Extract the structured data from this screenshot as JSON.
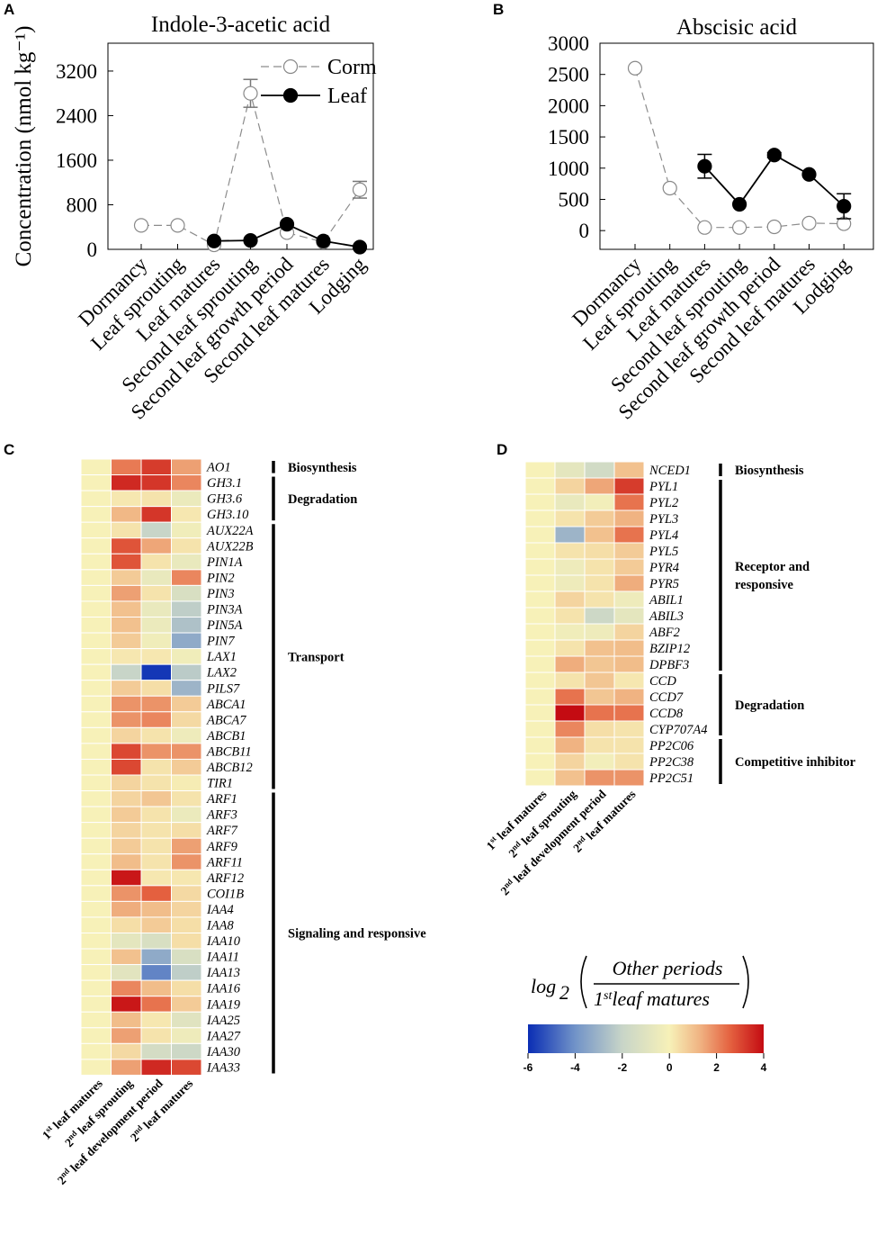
{
  "panels": {
    "A": {
      "letter": "A"
    },
    "B": {
      "letter": "B"
    },
    "C": {
      "letter": "C"
    },
    "D": {
      "letter": "D"
    }
  },
  "chart_data": [
    {
      "panel": "A",
      "type": "line",
      "title": "Indole-3-acetic acid",
      "ylabel": "Concentration (nmol kg⁻¹)",
      "ylim": [
        0,
        3700
      ],
      "yticks": [
        0,
        800,
        1600,
        2400,
        3200
      ],
      "categories": [
        "Dormancy",
        "Leaf sprouting",
        "Leaf matures",
        "Second leaf sprouting",
        "Second leaf growth period",
        "Second leaf matures",
        "Lodging"
      ],
      "legend_position": "top-right",
      "series": [
        {
          "name": "Corm",
          "style": "dashed-open",
          "values": [
            430,
            430,
            80,
            2800,
            300,
            130,
            1070
          ],
          "errors": [
            0,
            0,
            0,
            250,
            0,
            0,
            150
          ]
        },
        {
          "name": "Leaf",
          "style": "solid-filled",
          "values": [
            null,
            null,
            150,
            160,
            450,
            150,
            40
          ],
          "errors": [
            0,
            0,
            0,
            0,
            0,
            0,
            0
          ]
        }
      ]
    },
    {
      "panel": "B",
      "type": "line",
      "title": "Abscisic acid",
      "ylabel": "",
      "ylim": [
        -300,
        3000
      ],
      "yticks": [
        0,
        500,
        1000,
        1500,
        2000,
        2500,
        3000
      ],
      "categories": [
        "Dormancy",
        "Leaf sprouting",
        "Leaf matures",
        "Second leaf sprouting",
        "Second leaf growth period",
        "Second leaf matures",
        "Lodging"
      ],
      "series": [
        {
          "name": "Corm",
          "style": "dashed-open",
          "values": [
            2600,
            680,
            50,
            50,
            60,
            120,
            110
          ],
          "errors": [
            0,
            0,
            0,
            0,
            0,
            0,
            0
          ]
        },
        {
          "name": "Leaf",
          "style": "solid-filled",
          "values": [
            null,
            null,
            1030,
            420,
            1210,
            900,
            390
          ],
          "errors": [
            0,
            0,
            190,
            0,
            40,
            0,
            200
          ]
        }
      ]
    },
    {
      "panel": "C",
      "type": "heatmap",
      "columns": [
        {
          "sup": "st",
          "pre": "1",
          "post": " leaf matures"
        },
        {
          "sup": "nd",
          "pre": "2",
          "post": " leaf sprouting"
        },
        {
          "sup": "nd",
          "pre": "2",
          "post": " leaf development period"
        },
        {
          "sup": "nd",
          "pre": "2",
          "post": " leaf matures"
        }
      ],
      "rows": [
        {
          "gene": "AO1",
          "values": [
            0,
            2.2,
            3.2,
            1.6
          ]
        },
        {
          "gene": "GH3.1",
          "values": [
            0,
            3.5,
            3.3,
            2.0
          ]
        },
        {
          "gene": "GH3.6",
          "values": [
            0,
            0.2,
            0.3,
            -0.5
          ]
        },
        {
          "gene": "GH3.10",
          "values": [
            0,
            1.2,
            3.3,
            0.2
          ]
        },
        {
          "gene": "AUX22A",
          "values": [
            0,
            0.3,
            -2.0,
            -0.3
          ]
        },
        {
          "gene": "AUX22B",
          "values": [
            0,
            2.8,
            1.5,
            0.3
          ]
        },
        {
          "gene": "PIN1A",
          "values": [
            0,
            2.8,
            0.3,
            -0.6
          ]
        },
        {
          "gene": "PIN2",
          "values": [
            0,
            0.8,
            -0.6,
            2.0
          ]
        },
        {
          "gene": "PIN3",
          "values": [
            0,
            1.6,
            0.3,
            -1.3
          ]
        },
        {
          "gene": "PIN3A",
          "values": [
            0,
            1.0,
            -0.6,
            -2.2
          ]
        },
        {
          "gene": "PIN5A",
          "values": [
            0,
            1.0,
            -0.5,
            -2.6
          ]
        },
        {
          "gene": "PIN7",
          "values": [
            0,
            0.8,
            -0.3,
            -3.3
          ]
        },
        {
          "gene": "LAX1",
          "values": [
            0,
            0.2,
            0.2,
            -0.3
          ]
        },
        {
          "gene": "LAX2",
          "values": [
            0,
            -2.0,
            -5.8,
            -2.3
          ]
        },
        {
          "gene": "PILS7",
          "values": [
            0,
            0.8,
            0.4,
            -3.0
          ]
        },
        {
          "gene": "ABCA1",
          "values": [
            0,
            1.8,
            1.8,
            0.8
          ]
        },
        {
          "gene": "ABCA7",
          "values": [
            0,
            1.8,
            2.0,
            0.5
          ]
        },
        {
          "gene": "ABCB1",
          "values": [
            0,
            0.6,
            0.3,
            -0.4
          ]
        },
        {
          "gene": "ABCB11",
          "values": [
            0,
            3.0,
            1.8,
            1.8
          ]
        },
        {
          "gene": "ABCB12",
          "values": [
            0,
            3.0,
            0.3,
            0.8
          ]
        },
        {
          "gene": "TIR1",
          "values": [
            0,
            0.6,
            0.3,
            0.1
          ]
        },
        {
          "gene": "ARF1",
          "values": [
            0,
            0.6,
            0.9,
            0.3
          ]
        },
        {
          "gene": "ARF3",
          "values": [
            0,
            0.8,
            0.3,
            -0.5
          ]
        },
        {
          "gene": "ARF7",
          "values": [
            0,
            0.6,
            0.3,
            0.4
          ]
        },
        {
          "gene": "ARF9",
          "values": [
            0,
            0.8,
            0.3,
            1.6
          ]
        },
        {
          "gene": "ARF11",
          "values": [
            0,
            1.1,
            0.3,
            1.8
          ]
        },
        {
          "gene": "ARF12",
          "values": [
            0,
            3.8,
            0.2,
            0.2
          ]
        },
        {
          "gene": "COI1B",
          "values": [
            0,
            1.8,
            2.6,
            0.5
          ]
        },
        {
          "gene": "IAA4",
          "values": [
            0,
            1.4,
            1.1,
            0.6
          ]
        },
        {
          "gene": "IAA8",
          "values": [
            0,
            0.4,
            0.8,
            0.4
          ]
        },
        {
          "gene": "IAA10",
          "values": [
            0,
            -0.8,
            -1.3,
            0.4
          ]
        },
        {
          "gene": "IAA11",
          "values": [
            0,
            1.0,
            -3.3,
            -1.3
          ]
        },
        {
          "gene": "IAA13",
          "values": [
            0,
            -0.9,
            -4.3,
            -2.2
          ]
        },
        {
          "gene": "IAA16",
          "values": [
            0,
            2.0,
            1.1,
            0.4
          ]
        },
        {
          "gene": "IAA19",
          "values": [
            0,
            3.8,
            2.3,
            0.8
          ]
        },
        {
          "gene": "IAA25",
          "values": [
            0,
            1.1,
            0.2,
            -1.0
          ]
        },
        {
          "gene": "IAA27",
          "values": [
            0,
            1.6,
            0.3,
            -0.4
          ]
        },
        {
          "gene": "IAA30",
          "values": [
            0,
            0.5,
            -1.5,
            -1.8
          ]
        },
        {
          "gene": "IAA33",
          "values": [
            0,
            1.6,
            3.5,
            3.0
          ]
        }
      ],
      "groups": [
        {
          "label": "Biosynthesis",
          "from": 0,
          "to": 0
        },
        {
          "label": "Degradation",
          "from": 1,
          "to": 3
        },
        {
          "label": "Transport",
          "from": 4,
          "to": 20
        },
        {
          "label": "Signaling and responsive",
          "from": 21,
          "to": 38
        }
      ]
    },
    {
      "panel": "D",
      "type": "heatmap",
      "columns": [
        {
          "sup": "st",
          "pre": "1",
          "post": " leaf matures"
        },
        {
          "sup": "nd",
          "pre": "2",
          "post": " leaf sprouting"
        },
        {
          "sup": "nd",
          "pre": "2",
          "post": " leaf development period"
        },
        {
          "sup": "nd",
          "pre": "2",
          "post": " leaf matures"
        }
      ],
      "rows": [
        {
          "gene": "NCED1",
          "values": [
            0,
            -0.8,
            -1.6,
            1.0
          ]
        },
        {
          "gene": "PYL1",
          "values": [
            0,
            0.6,
            1.5,
            3.2
          ]
        },
        {
          "gene": "PYL2",
          "values": [
            0,
            -0.6,
            -0.2,
            2.3
          ]
        },
        {
          "gene": "PYL3",
          "values": [
            0,
            0.3,
            0.8,
            1.3
          ]
        },
        {
          "gene": "PYL4",
          "values": [
            0,
            -3.0,
            1.0,
            2.3
          ]
        },
        {
          "gene": "PYL5",
          "values": [
            0,
            0.3,
            0.4,
            0.8
          ]
        },
        {
          "gene": "PYR4",
          "values": [
            0,
            -0.4,
            0.3,
            0.8
          ]
        },
        {
          "gene": "PYR5",
          "values": [
            0,
            -0.4,
            0.3,
            1.4
          ]
        },
        {
          "gene": "ABIL1",
          "values": [
            0,
            0.6,
            0.3,
            -0.4
          ]
        },
        {
          "gene": "ABIL3",
          "values": [
            0,
            0.3,
            -1.8,
            -0.8
          ]
        },
        {
          "gene": "ABF2",
          "values": [
            0,
            -0.3,
            -0.4,
            0.6
          ]
        },
        {
          "gene": "BZIP12",
          "values": [
            0,
            0.3,
            1.0,
            1.1
          ]
        },
        {
          "gene": "DPBF3",
          "values": [
            0,
            1.4,
            0.9,
            1.1
          ]
        },
        {
          "gene": "CCD",
          "values": [
            0,
            0.3,
            0.9,
            0.2
          ]
        },
        {
          "gene": "CCD7",
          "values": [
            0,
            2.3,
            0.9,
            1.3
          ]
        },
        {
          "gene": "CCD8",
          "values": [
            0,
            4.0,
            2.3,
            2.3
          ]
        },
        {
          "gene": "CYP707A4",
          "values": [
            0,
            2.0,
            0.4,
            0.3
          ]
        },
        {
          "gene": "PP2C06",
          "values": [
            0,
            1.3,
            0.3,
            0.3
          ]
        },
        {
          "gene": "PP2C38",
          "values": [
            0,
            0.6,
            -0.2,
            0.3
          ]
        },
        {
          "gene": "PP2C51",
          "values": [
            0,
            1.0,
            1.8,
            1.8
          ]
        }
      ],
      "groups": [
        {
          "label": "Biosynthesis",
          "from": 0,
          "to": 0
        },
        {
          "label": "Receptor and\nresponsive",
          "from": 1,
          "to": 12
        },
        {
          "label": "Degradation",
          "from": 13,
          "to": 16
        },
        {
          "label": "Competitive inhibitor",
          "from": 17,
          "to": 19
        }
      ]
    }
  ],
  "colorbar": {
    "formula_log": "log",
    "formula_base": "2",
    "formula_numerator": "Other periods",
    "formula_denominator_pre": "1",
    "formula_denominator_sup": "st",
    "formula_denominator_post": "leaf matures",
    "min": -6,
    "max": 4,
    "ticks": [
      "-6",
      "-4",
      "-2",
      "0",
      "2",
      "4"
    ],
    "colors": [
      "#0a2db4",
      "#7193c8",
      "#c8d5c8",
      "#f7f1b8",
      "#f0b382",
      "#e4603f",
      "#c40b12"
    ]
  }
}
